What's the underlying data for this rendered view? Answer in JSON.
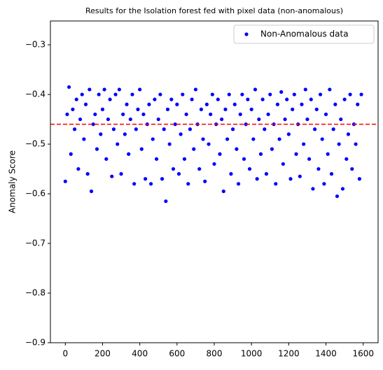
{
  "chart_data": {
    "type": "scatter",
    "title": "Results for the Isolation forest fed with pixel data (non-anomalous)",
    "y_label": "Anomaly Score",
    "legend": "upper right",
    "series": [
      {
        "name": "Non-Anomalous data",
        "color": "#0000ff",
        "x": [
          0,
          10,
          20,
          30,
          40,
          50,
          60,
          70,
          80,
          90,
          100,
          110,
          120,
          130,
          140,
          150,
          160,
          170,
          180,
          190,
          200,
          210,
          220,
          230,
          240,
          250,
          260,
          270,
          280,
          290,
          300,
          310,
          320,
          330,
          340,
          350,
          360,
          370,
          380,
          390,
          400,
          410,
          420,
          430,
          440,
          450,
          460,
          470,
          480,
          490,
          500,
          510,
          520,
          530,
          540,
          550,
          560,
          570,
          580,
          590,
          600,
          610,
          620,
          630,
          640,
          650,
          660,
          670,
          680,
          690,
          700,
          710,
          720,
          730,
          740,
          750,
          760,
          770,
          780,
          790,
          800,
          810,
          820,
          830,
          840,
          850,
          860,
          870,
          880,
          890,
          900,
          910,
          920,
          930,
          940,
          950,
          960,
          970,
          980,
          990,
          1000,
          1010,
          1020,
          1030,
          1040,
          1050,
          1060,
          1070,
          1080,
          1090,
          1100,
          1110,
          1120,
          1130,
          1140,
          1150,
          1160,
          1170,
          1180,
          1190,
          1200,
          1210,
          1220,
          1230,
          1240,
          1250,
          1260,
          1270,
          1280,
          1290,
          1300,
          1310,
          1320,
          1330,
          1340,
          1350,
          1360,
          1370,
          1380,
          1390,
          1400,
          1410,
          1420,
          1430,
          1440,
          1450,
          1460,
          1470,
          1480,
          1490,
          1500,
          1510,
          1520,
          1530,
          1540,
          1550,
          1560,
          1570,
          1580,
          1590
        ],
        "values": [
          -0.575,
          -0.44,
          -0.385,
          -0.52,
          -0.43,
          -0.47,
          -0.41,
          -0.55,
          -0.45,
          -0.4,
          -0.49,
          -0.42,
          -0.56,
          -0.39,
          -0.595,
          -0.46,
          -0.44,
          -0.51,
          -0.4,
          -0.48,
          -0.43,
          -0.39,
          -0.53,
          -0.45,
          -0.41,
          -0.565,
          -0.47,
          -0.4,
          -0.5,
          -0.39,
          -0.56,
          -0.44,
          -0.48,
          -0.42,
          -0.52,
          -0.45,
          -0.4,
          -0.58,
          -0.47,
          -0.43,
          -0.39,
          -0.51,
          -0.44,
          -0.57,
          -0.46,
          -0.42,
          -0.58,
          -0.49,
          -0.41,
          -0.53,
          -0.45,
          -0.4,
          -0.57,
          -0.47,
          -0.615,
          -0.43,
          -0.5,
          -0.41,
          -0.55,
          -0.46,
          -0.42,
          -0.56,
          -0.48,
          -0.4,
          -0.53,
          -0.44,
          -0.58,
          -0.47,
          -0.41,
          -0.51,
          -0.39,
          -0.46,
          -0.55,
          -0.43,
          -0.49,
          -0.575,
          -0.42,
          -0.5,
          -0.44,
          -0.4,
          -0.54,
          -0.46,
          -0.41,
          -0.52,
          -0.45,
          -0.595,
          -0.43,
          -0.49,
          -0.4,
          -0.56,
          -0.47,
          -0.42,
          -0.51,
          -0.58,
          -0.44,
          -0.4,
          -0.53,
          -0.46,
          -0.41,
          -0.55,
          -0.43,
          -0.49,
          -0.39,
          -0.57,
          -0.45,
          -0.52,
          -0.41,
          -0.47,
          -0.56,
          -0.44,
          -0.4,
          -0.51,
          -0.46,
          -0.58,
          -0.42,
          -0.49,
          -0.395,
          -0.54,
          -0.45,
          -0.41,
          -0.48,
          -0.57,
          -0.43,
          -0.4,
          -0.52,
          -0.46,
          -0.565,
          -0.42,
          -0.5,
          -0.39,
          -0.45,
          -0.53,
          -0.41,
          -0.59,
          -0.47,
          -0.43,
          -0.55,
          -0.4,
          -0.49,
          -0.58,
          -0.44,
          -0.52,
          -0.39,
          -0.56,
          -0.47,
          -0.42,
          -0.605,
          -0.5,
          -0.45,
          -0.59,
          -0.41,
          -0.53,
          -0.48,
          -0.4,
          -0.55,
          -0.46,
          -0.5,
          -0.42,
          -0.57,
          -0.4
        ]
      }
    ],
    "hline": -0.46,
    "hline_color": "#ff0000",
    "xlim": [
      -80,
      1680
    ],
    "ylim": [
      -0.9,
      -0.252
    ],
    "xticks": [
      0,
      200,
      400,
      600,
      800,
      1000,
      1200,
      1400,
      1600
    ],
    "yticks": [
      {
        "value": -0.9,
        "label": "−0.9"
      },
      {
        "value": -0.8,
        "label": "−0.8"
      },
      {
        "value": -0.7,
        "label": "−0.7"
      },
      {
        "value": -0.6,
        "label": "−0.6"
      },
      {
        "value": -0.5,
        "label": "−0.5"
      },
      {
        "value": -0.4,
        "label": "−0.4"
      },
      {
        "value": -0.3,
        "label": "−0.3"
      }
    ]
  }
}
